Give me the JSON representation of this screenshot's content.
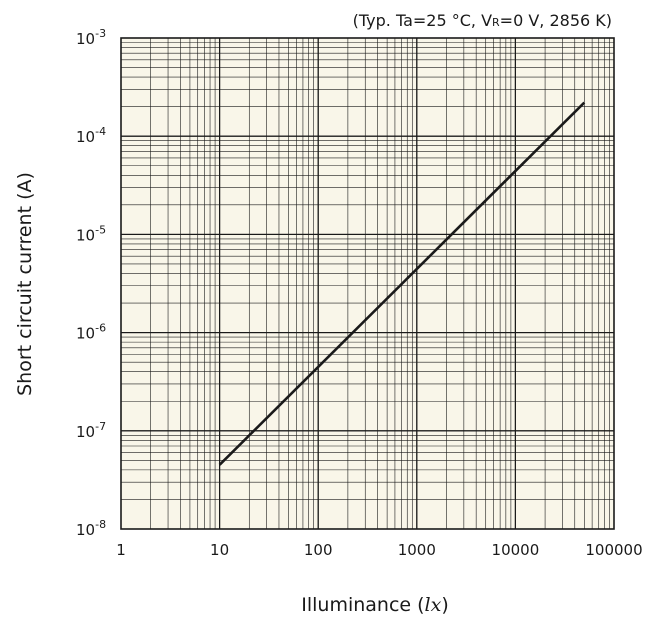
{
  "chart_data": {
    "type": "line",
    "scale": {
      "x": "log",
      "y": "log"
    },
    "conditions": {
      "prefix": "(Typ. Ta=25  °C, V",
      "subscript": "R",
      "suffix": "=0 V, 2856 K)"
    },
    "xlabel": {
      "text": "Illuminance (",
      "unit": "lx",
      "close": ")"
    },
    "ylabel": "Short circuit current (A)",
    "xlim": [
      1,
      100000
    ],
    "ylim": [
      1e-08,
      0.001
    ],
    "x_ticks": [
      "1",
      "10",
      "100",
      "1000",
      "10000",
      "100000"
    ],
    "y_ticks": [
      {
        "base": "10",
        "exp": "-8"
      },
      {
        "base": "10",
        "exp": "-7"
      },
      {
        "base": "10",
        "exp": "-6"
      },
      {
        "base": "10",
        "exp": "-5"
      },
      {
        "base": "10",
        "exp": "-4"
      },
      {
        "base": "10",
        "exp": "-3"
      }
    ],
    "grid": true,
    "colors": {
      "background": "#f9f6e9",
      "grid": "#1a1a1a",
      "line": "#1a1a1a"
    },
    "series": [
      {
        "x": [
          10,
          50000
        ],
        "y": [
          4.5e-08,
          0.00022
        ]
      }
    ]
  }
}
